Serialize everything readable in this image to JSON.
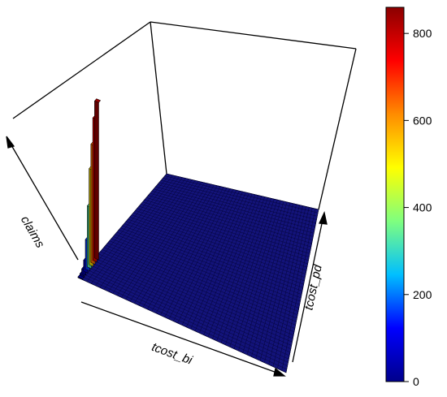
{
  "chart_data": {
    "type": "bar3d",
    "xlabel": "tcost_bi",
    "ylabel": "tcost_pd",
    "zlabel": "claims",
    "zlim": [
      0,
      860
    ],
    "colorbar": {
      "ticks": [
        0,
        200,
        400,
        600,
        800
      ],
      "range": [
        0,
        860
      ],
      "colors": [
        "#00008b",
        "#0000ff",
        "#00bfff",
        "#7fff7f",
        "#ffff00",
        "#ff8c00",
        "#ff0000",
        "#8b0000"
      ]
    },
    "x_bins": 48,
    "y_bins": 48,
    "peak_column_values": [
      850,
      770,
      640,
      520,
      330,
      160,
      60,
      25,
      10,
      5
    ]
  }
}
